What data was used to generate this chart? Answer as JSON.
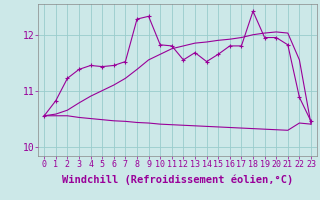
{
  "xlabel": "Windchill (Refroidissement éolien,°C)",
  "bg_color": "#cce8e8",
  "line_color": "#990099",
  "xlim": [
    -0.5,
    23.5
  ],
  "ylim": [
    9.83,
    12.55
  ],
  "yticks": [
    10,
    11,
    12
  ],
  "xticks": [
    0,
    1,
    2,
    3,
    4,
    5,
    6,
    7,
    8,
    9,
    10,
    11,
    12,
    13,
    14,
    15,
    16,
    17,
    18,
    19,
    20,
    21,
    22,
    23
  ],
  "curve1_x": [
    0,
    1,
    2,
    3,
    4,
    5,
    6,
    7,
    8,
    9,
    10,
    11,
    12,
    13,
    14,
    15,
    16,
    17,
    18,
    19,
    20,
    21,
    22,
    23
  ],
  "curve1_y": [
    10.55,
    10.82,
    11.22,
    11.38,
    11.45,
    11.43,
    11.45,
    11.52,
    12.28,
    12.33,
    11.82,
    11.8,
    11.55,
    11.68,
    11.52,
    11.65,
    11.8,
    11.8,
    12.42,
    11.95,
    11.95,
    11.82,
    10.88,
    10.45
  ],
  "curve2_x": [
    0,
    1,
    2,
    3,
    4,
    5,
    6,
    7,
    8,
    9,
    10,
    11,
    12,
    13,
    14,
    15,
    16,
    17,
    18,
    19,
    20,
    21,
    22,
    23
  ],
  "curve2_y": [
    10.55,
    10.55,
    10.55,
    10.52,
    10.5,
    10.48,
    10.46,
    10.45,
    10.43,
    10.42,
    10.4,
    10.39,
    10.38,
    10.37,
    10.36,
    10.35,
    10.34,
    10.33,
    10.32,
    10.31,
    10.3,
    10.29,
    10.42,
    10.4
  ],
  "curve3_x": [
    0,
    1,
    2,
    3,
    4,
    5,
    6,
    7,
    8,
    9,
    10,
    11,
    12,
    13,
    14,
    15,
    16,
    17,
    18,
    19,
    20,
    21,
    22,
    23
  ],
  "curve3_y": [
    10.55,
    10.58,
    10.65,
    10.78,
    10.9,
    11.0,
    11.1,
    11.22,
    11.38,
    11.55,
    11.65,
    11.75,
    11.8,
    11.85,
    11.87,
    11.9,
    11.92,
    11.95,
    12.0,
    12.03,
    12.05,
    12.03,
    11.55,
    10.4
  ],
  "grid_color": "#99cccc",
  "font_family": "monospace",
  "tick_fontsize": 6,
  "xlabel_fontsize": 7.5
}
